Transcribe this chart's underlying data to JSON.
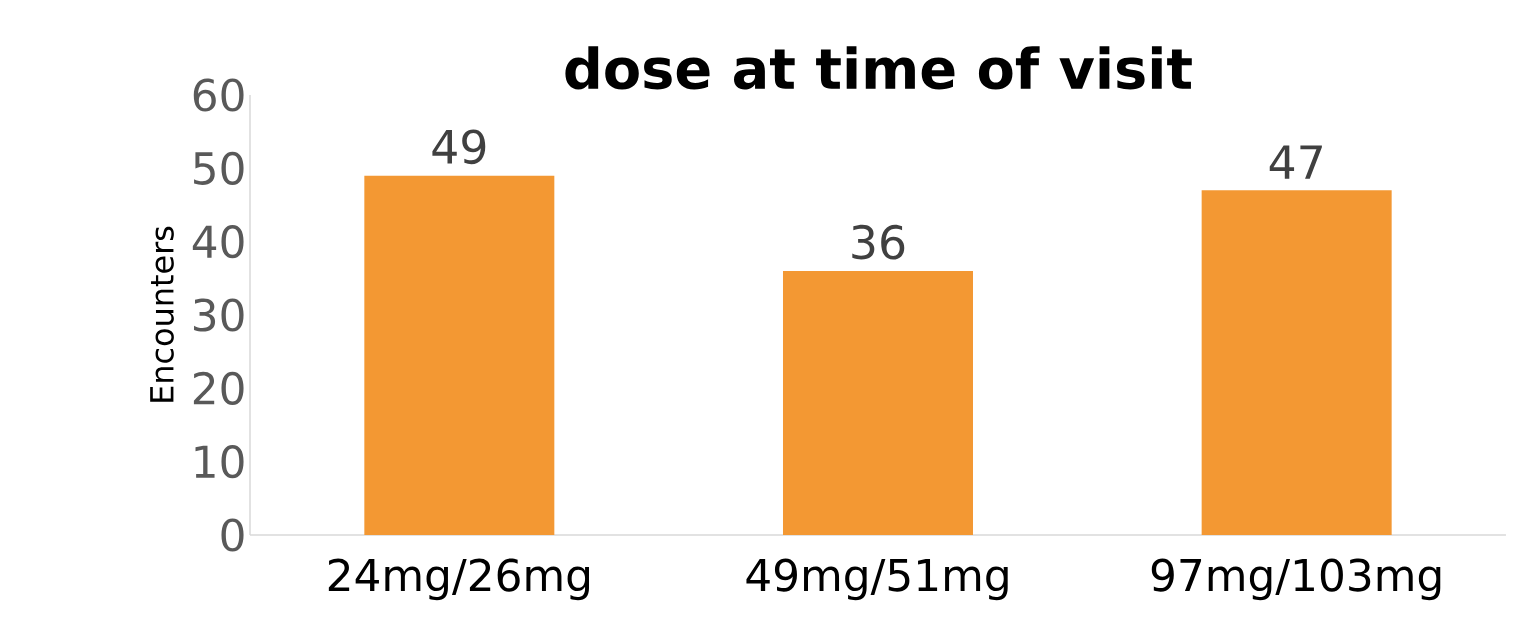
{
  "chart_data": {
    "type": "bar",
    "title": "dose at time of visit",
    "ylabel": "Encounters",
    "categories": [
      "24mg/26mg",
      "49mg/51mg",
      "97mg/103mg"
    ],
    "values": [
      49,
      36,
      47
    ],
    "color": "#f39833",
    "ylim": [
      0,
      60
    ],
    "yticks": [
      0,
      10,
      20,
      30,
      40,
      50,
      60
    ],
    "grid": false,
    "data_labels": true
  }
}
